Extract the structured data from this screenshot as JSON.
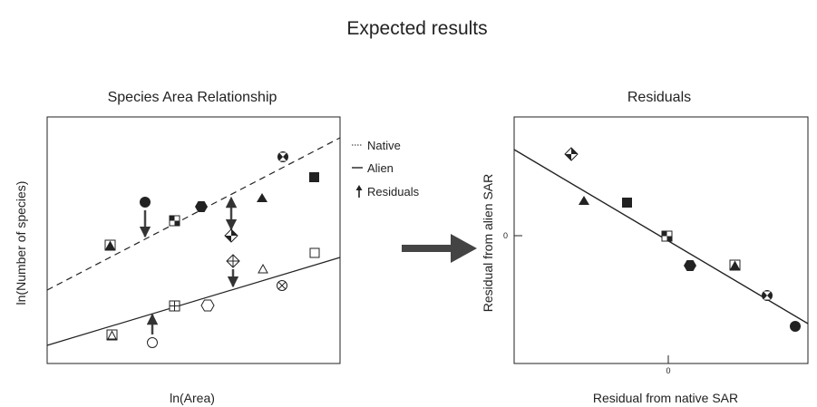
{
  "title": "Expected results",
  "left_panel": {
    "title": "Species Area Relationship",
    "xlabel": "ln(Area)",
    "ylabel": "ln(Number of species)"
  },
  "legend": {
    "native": "Native",
    "alien": "Alien",
    "residuals": "Residuals"
  },
  "right_panel": {
    "title": "Residuals",
    "xlabel": "Residual from native SAR",
    "ylabel": "Residual from alien SAR",
    "x_zero_tick": "0",
    "y_zero_tick": "0"
  },
  "colors": {
    "ink": "#222222",
    "arrow": "#444444",
    "hollow_fill": "#ffffff"
  },
  "icons": {
    "big_arrow": "right-arrow-icon",
    "residual_arrow": "up-arrow-icon"
  }
}
